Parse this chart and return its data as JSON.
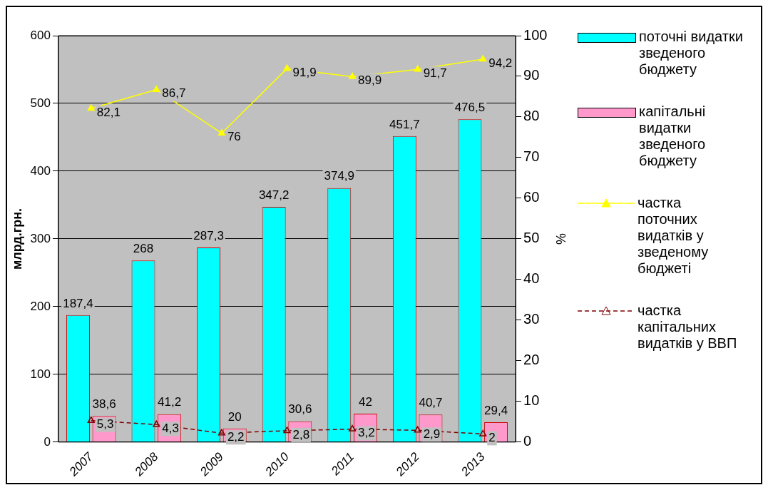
{
  "chart_data": {
    "type": "bar",
    "categories": [
      "2007",
      "2008",
      "2009",
      "2010",
      "2011",
      "2012",
      "2013"
    ],
    "ylabel": "млрд.грн.",
    "y2label": "%",
    "ylim": [
      0,
      600
    ],
    "yticks": [
      0,
      100,
      200,
      300,
      400,
      500,
      600
    ],
    "y2lim": [
      0,
      100
    ],
    "y2ticks": [
      0,
      10,
      20,
      30,
      40,
      50,
      60,
      70,
      80,
      90,
      100
    ],
    "grid": "y",
    "legend": "right",
    "series": [
      {
        "name": "поточні видатки зведеного бюджету",
        "color": "#00ffff",
        "values": [
          187.4,
          268,
          287.3,
          347.2,
          374.9,
          451.7,
          476.5
        ],
        "value_labels": [
          "187,4",
          "268",
          "287,3",
          "347,2",
          "374,9",
          "451,7",
          "476,5"
        ]
      },
      {
        "name": "капітальні видатки зведеного бюджету",
        "color": "#ff99cc",
        "values": [
          38.6,
          41.2,
          20,
          30.6,
          42,
          40.7,
          29.4
        ],
        "value_labels": [
          "38,6",
          "41,2",
          "20",
          "30,6",
          "42",
          "40,7",
          "29,4"
        ]
      },
      {
        "name": "частка поточних видатків у зведеному бюджеті",
        "type": "line",
        "axis": "y2",
        "color": "#ffff00",
        "marker": "triangle",
        "line_style": "solid",
        "values": [
          82.1,
          86.7,
          76,
          91.9,
          89.9,
          91.7,
          94.2
        ],
        "value_labels": [
          "82,1",
          "86,7",
          "76",
          "91,9",
          "89,9",
          "91,7",
          "94,2"
        ]
      },
      {
        "name": "частка капітальних видатків у ВВП",
        "type": "line",
        "axis": "y2",
        "color": "#800000",
        "marker": "triangle",
        "line_style": "dashed",
        "values": [
          5.3,
          4.3,
          2.2,
          2.8,
          3.2,
          2.9,
          2
        ],
        "value_labels": [
          "5,3",
          "4,3",
          "2,2",
          "2,8",
          "3,2",
          "2,9",
          "2"
        ]
      }
    ]
  }
}
